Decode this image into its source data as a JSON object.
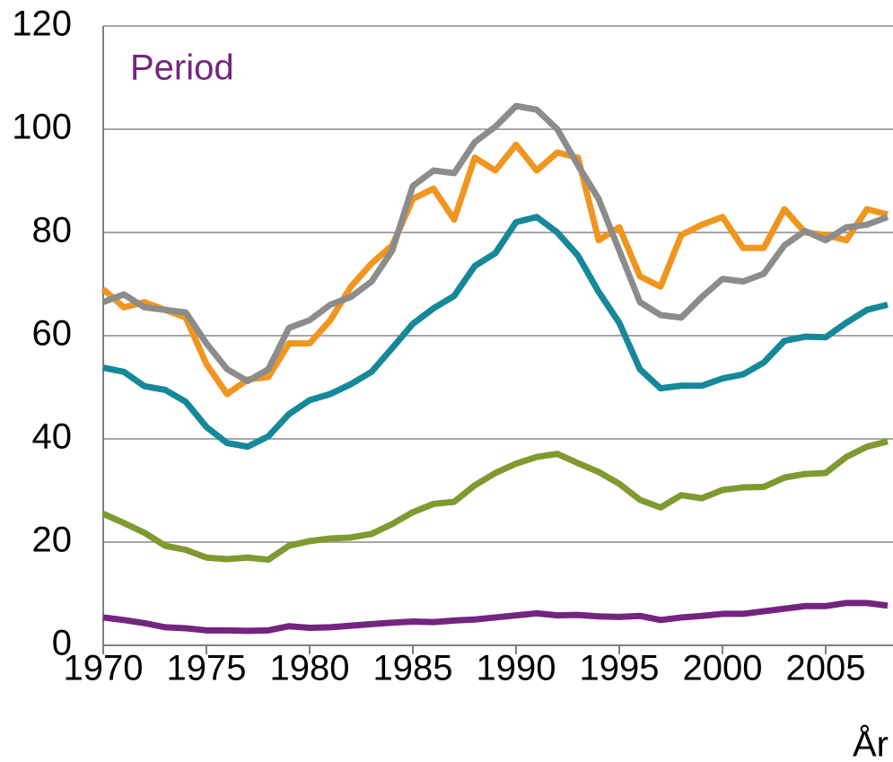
{
  "chart_data": {
    "type": "line",
    "title": "Period",
    "x_label": "År",
    "x": [
      1970,
      1971,
      1972,
      1973,
      1974,
      1975,
      1976,
      1977,
      1978,
      1979,
      1980,
      1981,
      1982,
      1983,
      1984,
      1985,
      1986,
      1987,
      1988,
      1989,
      1990,
      1991,
      1992,
      1993,
      1994,
      1995,
      1996,
      1997,
      1998,
      1999,
      2000,
      2001,
      2002,
      2003,
      2004,
      2005,
      2006,
      2007,
      2008
    ],
    "series": [
      {
        "color": "#f0961e",
        "values": [
          69,
          65.5,
          66.5,
          65,
          63.5,
          54.5,
          48.7,
          51.5,
          52,
          58.5,
          58.5,
          63,
          69.5,
          74,
          77.5,
          86.5,
          88.5,
          82.5,
          94.5,
          92,
          97,
          92,
          95.5,
          94.5,
          78.5,
          81,
          71.5,
          69.5,
          79.5,
          81.5,
          83,
          77,
          77,
          84.5,
          80,
          79.5,
          78.5,
          84.5,
          83.5
        ]
      },
      {
        "color": "#8c8c8c",
        "values": [
          66.5,
          68,
          65.5,
          65,
          64.5,
          58.5,
          53.5,
          51.2,
          53.5,
          61.5,
          63,
          66,
          67.5,
          70.5,
          76.5,
          89,
          92,
          91.5,
          97.5,
          100.5,
          104.5,
          103.8,
          100,
          93,
          86.5,
          76.5,
          66.5,
          64,
          63.5,
          67.5,
          71,
          70.5,
          72,
          77.5,
          80.3,
          78.5,
          81,
          81.5,
          83
        ]
      },
      {
        "color": "#15889a",
        "values": [
          53.8,
          53,
          50.2,
          49.5,
          47.2,
          42.3,
          39.2,
          38.5,
          40.5,
          44.8,
          47.5,
          48.7,
          50.6,
          53,
          57.6,
          62.3,
          65.3,
          67.7,
          73.5,
          76,
          82,
          83,
          80,
          75.5,
          68.5,
          62.5,
          53.5,
          49.8,
          50.3,
          50.3,
          51.7,
          52.5,
          54.8,
          59,
          59.8,
          59.7,
          62.5,
          65,
          66
        ]
      },
      {
        "color": "#7f9a2f",
        "values": [
          25.5,
          23.7,
          21.8,
          19.3,
          18.5,
          17,
          16.7,
          17,
          16.6,
          19.3,
          20.2,
          20.7,
          20.9,
          21.6,
          23.5,
          25.8,
          27.4,
          27.8,
          31,
          33.4,
          35.2,
          36.5,
          37.1,
          35.3,
          33.6,
          31.3,
          28.2,
          26.7,
          29.1,
          28.5,
          30.1,
          30.6,
          30.7,
          32.5,
          33.2,
          33.4,
          36.5,
          38.5,
          39.5
        ]
      },
      {
        "color": "#73257f",
        "values": [
          5.4,
          4.9,
          4.3,
          3.5,
          3.3,
          2.9,
          2.9,
          2.8,
          2.9,
          3.7,
          3.4,
          3.5,
          3.8,
          4.1,
          4.4,
          4.6,
          4.5,
          4.8,
          5,
          5.4,
          5.8,
          6.2,
          5.8,
          5.9,
          5.6,
          5.5,
          5.7,
          4.9,
          5.4,
          5.7,
          6.1,
          6.1,
          6.6,
          7.1,
          7.6,
          7.6,
          8.2,
          8.2,
          7.7
        ]
      }
    ],
    "xlim": [
      1970,
      2008.26
    ],
    "xticks": [
      1970,
      1975,
      1980,
      1985,
      1990,
      1995,
      2000,
      2005
    ],
    "ylim": [
      0,
      120
    ],
    "yticks": [
      0,
      20,
      40,
      60,
      80,
      100,
      120
    ],
    "grid": true,
    "title_color": "#73257f"
  }
}
